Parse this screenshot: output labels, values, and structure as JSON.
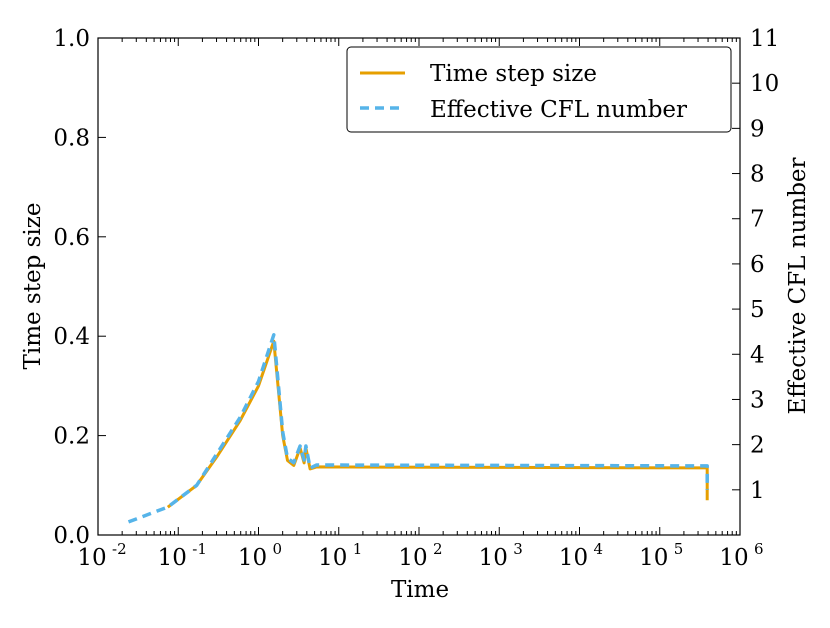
{
  "chart_data": {
    "type": "line",
    "title": "",
    "xlabel": "Time",
    "ylabel": "Time step size",
    "y2label": "Effective CFL number",
    "xscale": "log",
    "xlim": [
      0.01,
      1000000
    ],
    "ylim": [
      0.0,
      1.0
    ],
    "y2lim": [
      0,
      11
    ],
    "xticks": [
      {
        "base": "10",
        "exp": "-2",
        "v": 0.01
      },
      {
        "base": "10",
        "exp": "-1",
        "v": 0.1
      },
      {
        "base": "10",
        "exp": "0",
        "v": 1
      },
      {
        "base": "10",
        "exp": "1",
        "v": 10
      },
      {
        "base": "10",
        "exp": "2",
        "v": 100
      },
      {
        "base": "10",
        "exp": "3",
        "v": 1000
      },
      {
        "base": "10",
        "exp": "4",
        "v": 10000
      },
      {
        "base": "10",
        "exp": "5",
        "v": 100000
      },
      {
        "base": "10",
        "exp": "6",
        "v": 1000000
      }
    ],
    "yticks": [
      "0.0",
      "0.2",
      "0.4",
      "0.6",
      "0.8",
      "1.0"
    ],
    "y2ticks": [
      "1",
      "2",
      "3",
      "4",
      "5",
      "6",
      "7",
      "8",
      "9",
      "10",
      "11"
    ],
    "legend_position": "top-right",
    "series": [
      {
        "name": "Time step size",
        "axis": "left",
        "color": "#E69F00",
        "style": "solid",
        "x": [
          0.074,
          0.17,
          0.31,
          0.59,
          1.0,
          1.55,
          2.0,
          2.3,
          2.75,
          3.3,
          3.7,
          3.9,
          4.4,
          5.3,
          390000,
          390000
        ],
        "y": [
          0.056,
          0.1,
          0.16,
          0.23,
          0.3,
          0.39,
          0.2,
          0.15,
          0.14,
          0.175,
          0.145,
          0.175,
          0.133,
          0.137,
          0.135,
          0.07
        ]
      },
      {
        "name": "Effective CFL number",
        "axis": "right",
        "color": "#56B4E9",
        "style": "dashed",
        "x": [
          0.024,
          0.074,
          0.17,
          0.59,
          1.0,
          1.55,
          2.0,
          2.3,
          2.75,
          3.3,
          3.7,
          3.9,
          4.4,
          5.3,
          390000,
          390000
        ],
        "y": [
          0.29,
          0.62,
          1.1,
          2.6,
          3.4,
          4.43,
          2.28,
          1.7,
          1.6,
          1.97,
          1.66,
          1.97,
          1.48,
          1.55,
          1.53,
          1.0
        ]
      }
    ]
  }
}
